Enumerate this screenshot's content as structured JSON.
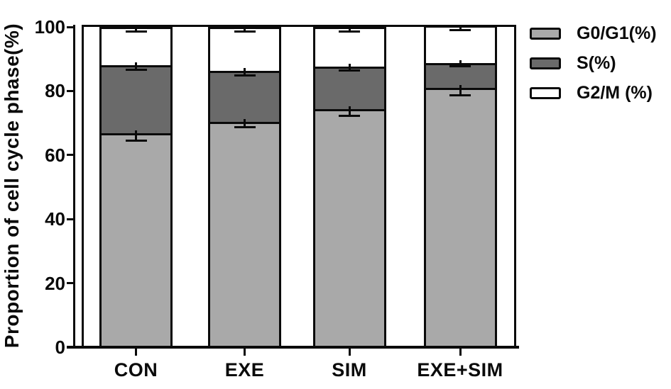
{
  "figure": {
    "background": "#ffffff",
    "axis_color": "#0a0a0a",
    "y_axis_title": "Proportion of cell cycle phase(%)",
    "y_tick_labels": [
      "0",
      "20",
      "40",
      "60",
      "80",
      "100"
    ],
    "x_tick_labels": [
      "CON",
      "EXE",
      "SIM",
      "EXE+SIM"
    ],
    "legend": {
      "position": "top-right",
      "items": [
        {
          "label": "G0/G1(%)",
          "swatch_color": "#a9a9a9"
        },
        {
          "label": "S(%)",
          "swatch_color": "#6a6a6a"
        },
        {
          "label": "G2/M (%)",
          "swatch_color": "#ffffff"
        }
      ]
    }
  },
  "chart_data": {
    "type": "bar",
    "subtype": "stacked-vertical-with-error-bars",
    "title": "",
    "xlabel": "",
    "ylabel": "Proportion of cell cycle phase(%)",
    "ylim": [
      0,
      100
    ],
    "yticks": [
      0,
      20,
      40,
      60,
      80,
      100
    ],
    "grid": false,
    "legend_position": "top-right",
    "categories": [
      "CON",
      "EXE",
      "SIM",
      "EXE+SIM"
    ],
    "series": [
      {
        "name": "G0/G1(%)",
        "color": "#a9a9a9",
        "values": [
          66.8,
          70.3,
          74.3,
          81.0
        ],
        "errors": [
          2.2,
          1.6,
          2.0,
          2.4
        ]
      },
      {
        "name": "S(%)",
        "color": "#6a6a6a",
        "values": [
          21.2,
          15.9,
          13.3,
          7.7
        ],
        "errors": [
          1.3,
          1.4,
          1.2,
          1.0
        ]
      },
      {
        "name": "G2/M (%)",
        "color": "#ffffff",
        "values": [
          11.3,
          13.1,
          11.7,
          11.0
        ],
        "errors": [
          0.8,
          0.8,
          0.8,
          0.7
        ]
      }
    ],
    "stack_totals": [
      99.3,
      99.3,
      99.3,
      99.7
    ]
  }
}
